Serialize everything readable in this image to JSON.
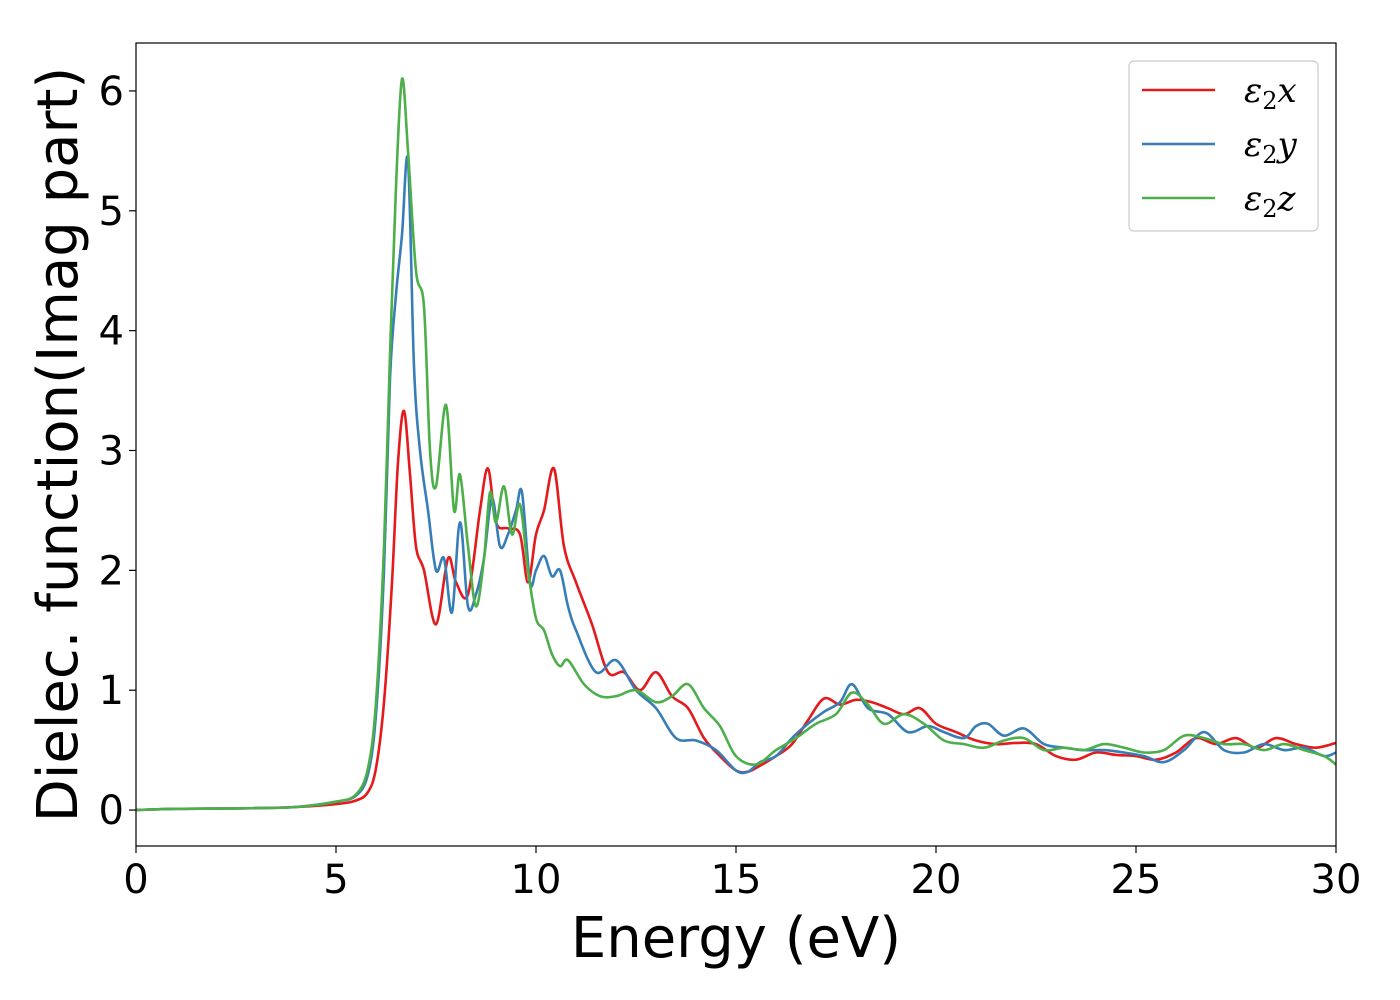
{
  "chart_data": {
    "type": "line",
    "title": "",
    "xlabel": "Energy (eV)",
    "ylabel": "Dielec. function(Imag part)",
    "xlim": [
      0,
      30
    ],
    "ylim": [
      -0.3,
      6.4
    ],
    "xticks": [
      0,
      5,
      10,
      15,
      20,
      25,
      30
    ],
    "yticks": [
      0,
      1,
      2,
      3,
      4,
      5,
      6
    ],
    "grid": false,
    "legend_position": "top-right",
    "series": [
      {
        "name": "ε₂x",
        "legend_base": "ε",
        "legend_sub": "2",
        "legend_axis": "x",
        "color": "#e41a1c",
        "x": [
          0,
          1,
          2,
          3,
          4,
          5,
          5.5,
          5.8,
          6.0,
          6.2,
          6.4,
          6.55,
          6.7,
          6.85,
          7.0,
          7.2,
          7.5,
          7.8,
          8.0,
          8.3,
          8.6,
          8.8,
          9.0,
          9.3,
          9.6,
          9.8,
          10.0,
          10.2,
          10.45,
          10.7,
          11.0,
          11.4,
          11.8,
          12.2,
          12.6,
          13.0,
          13.4,
          13.8,
          14.2,
          14.6,
          15.0,
          15.3,
          15.6,
          16.0,
          16.4,
          16.8,
          17.2,
          17.6,
          18.0,
          18.4,
          18.8,
          19.2,
          19.6,
          20.0,
          20.5,
          21.0,
          21.5,
          22.0,
          22.5,
          23.0,
          23.5,
          24.0,
          24.5,
          25.0,
          25.5,
          26.0,
          26.5,
          27.0,
          27.5,
          28.0,
          28.5,
          29.0,
          29.5,
          30.0
        ],
        "y": [
          0,
          0.01,
          0.012,
          0.016,
          0.025,
          0.05,
          0.08,
          0.15,
          0.35,
          0.9,
          1.9,
          2.9,
          3.33,
          2.8,
          2.2,
          2.0,
          1.55,
          2.1,
          1.9,
          1.8,
          2.5,
          2.85,
          2.4,
          2.35,
          2.3,
          1.9,
          2.3,
          2.5,
          2.85,
          2.2,
          1.9,
          1.55,
          1.15,
          1.15,
          1.0,
          1.15,
          0.95,
          0.85,
          0.6,
          0.45,
          0.33,
          0.32,
          0.37,
          0.45,
          0.55,
          0.75,
          0.93,
          0.88,
          0.92,
          0.9,
          0.85,
          0.8,
          0.85,
          0.72,
          0.65,
          0.58,
          0.55,
          0.56,
          0.55,
          0.45,
          0.42,
          0.48,
          0.46,
          0.45,
          0.42,
          0.48,
          0.6,
          0.55,
          0.6,
          0.52,
          0.6,
          0.55,
          0.52,
          0.56
        ]
      },
      {
        "name": "ε₂y",
        "legend_base": "ε",
        "legend_sub": "2",
        "legend_axis": "y",
        "color": "#377eb8",
        "x": [
          0,
          1,
          2,
          3,
          4,
          5,
          5.5,
          5.8,
          6.0,
          6.2,
          6.35,
          6.5,
          6.65,
          6.8,
          6.95,
          7.1,
          7.3,
          7.5,
          7.7,
          7.9,
          8.1,
          8.3,
          8.5,
          8.7,
          8.9,
          9.1,
          9.3,
          9.5,
          9.65,
          9.85,
          10.0,
          10.2,
          10.4,
          10.6,
          10.8,
          11.0,
          11.5,
          12.0,
          12.5,
          13.0,
          13.5,
          14.0,
          14.5,
          15.0,
          15.3,
          15.6,
          16.0,
          16.4,
          16.8,
          17.2,
          17.6,
          17.9,
          18.3,
          18.8,
          19.3,
          19.8,
          20.2,
          20.7,
          21.0,
          21.3,
          21.7,
          22.2,
          22.7,
          23.2,
          23.7,
          24.2,
          24.7,
          25.2,
          25.7,
          26.2,
          26.7,
          27.2,
          27.7,
          28.2,
          28.7,
          29.2,
          29.7,
          30.0
        ],
        "y": [
          0,
          0.01,
          0.012,
          0.016,
          0.025,
          0.07,
          0.12,
          0.3,
          0.8,
          2.0,
          3.6,
          4.3,
          4.8,
          5.42,
          3.7,
          3.0,
          2.5,
          2.0,
          2.1,
          1.65,
          2.4,
          1.7,
          1.8,
          2.1,
          2.6,
          2.2,
          2.3,
          2.5,
          2.65,
          1.9,
          2.0,
          2.12,
          1.95,
          2.0,
          1.7,
          1.5,
          1.15,
          1.25,
          1.0,
          0.85,
          0.6,
          0.58,
          0.5,
          0.33,
          0.32,
          0.4,
          0.45,
          0.6,
          0.72,
          0.82,
          0.9,
          1.05,
          0.85,
          0.8,
          0.65,
          0.7,
          0.65,
          0.6,
          0.7,
          0.72,
          0.62,
          0.68,
          0.55,
          0.52,
          0.5,
          0.5,
          0.48,
          0.45,
          0.4,
          0.5,
          0.65,
          0.5,
          0.48,
          0.55,
          0.5,
          0.52,
          0.45,
          0.48
        ]
      },
      {
        "name": "ε₂z",
        "legend_base": "ε",
        "legend_sub": "2",
        "legend_axis": "z",
        "color": "#4daf4a",
        "x": [
          0,
          1,
          2,
          3,
          4,
          5,
          5.5,
          5.8,
          6.0,
          6.2,
          6.35,
          6.5,
          6.65,
          6.8,
          7.0,
          7.2,
          7.35,
          7.5,
          7.75,
          7.95,
          8.1,
          8.3,
          8.5,
          8.7,
          8.85,
          9.0,
          9.2,
          9.4,
          9.6,
          9.8,
          10.0,
          10.2,
          10.4,
          10.6,
          10.8,
          11.2,
          11.6,
          12.0,
          12.5,
          13.0,
          13.4,
          13.8,
          14.2,
          14.6,
          15.0,
          15.5,
          16.0,
          16.5,
          17.0,
          17.5,
          17.9,
          18.3,
          18.7,
          19.2,
          19.7,
          20.2,
          20.7,
          21.2,
          21.7,
          22.2,
          22.7,
          23.2,
          23.7,
          24.2,
          24.7,
          25.2,
          25.7,
          26.2,
          26.7,
          27.2,
          27.7,
          28.2,
          28.7,
          29.2,
          29.7,
          30.0
        ],
        "y": [
          0,
          0.01,
          0.012,
          0.016,
          0.025,
          0.07,
          0.13,
          0.35,
          0.9,
          2.2,
          3.8,
          5.2,
          6.1,
          5.5,
          4.5,
          4.2,
          3.0,
          2.7,
          3.38,
          2.5,
          2.8,
          2.2,
          1.7,
          2.1,
          2.65,
          2.4,
          2.7,
          2.3,
          2.55,
          2.0,
          1.6,
          1.5,
          1.3,
          1.2,
          1.25,
          1.05,
          0.95,
          0.95,
          1.0,
          0.9,
          0.95,
          1.05,
          0.85,
          0.7,
          0.45,
          0.38,
          0.5,
          0.6,
          0.72,
          0.8,
          0.98,
          0.88,
          0.72,
          0.8,
          0.72,
          0.58,
          0.55,
          0.52,
          0.58,
          0.6,
          0.5,
          0.52,
          0.5,
          0.55,
          0.52,
          0.48,
          0.5,
          0.62,
          0.6,
          0.55,
          0.55,
          0.5,
          0.55,
          0.5,
          0.45,
          0.38
        ]
      }
    ]
  }
}
